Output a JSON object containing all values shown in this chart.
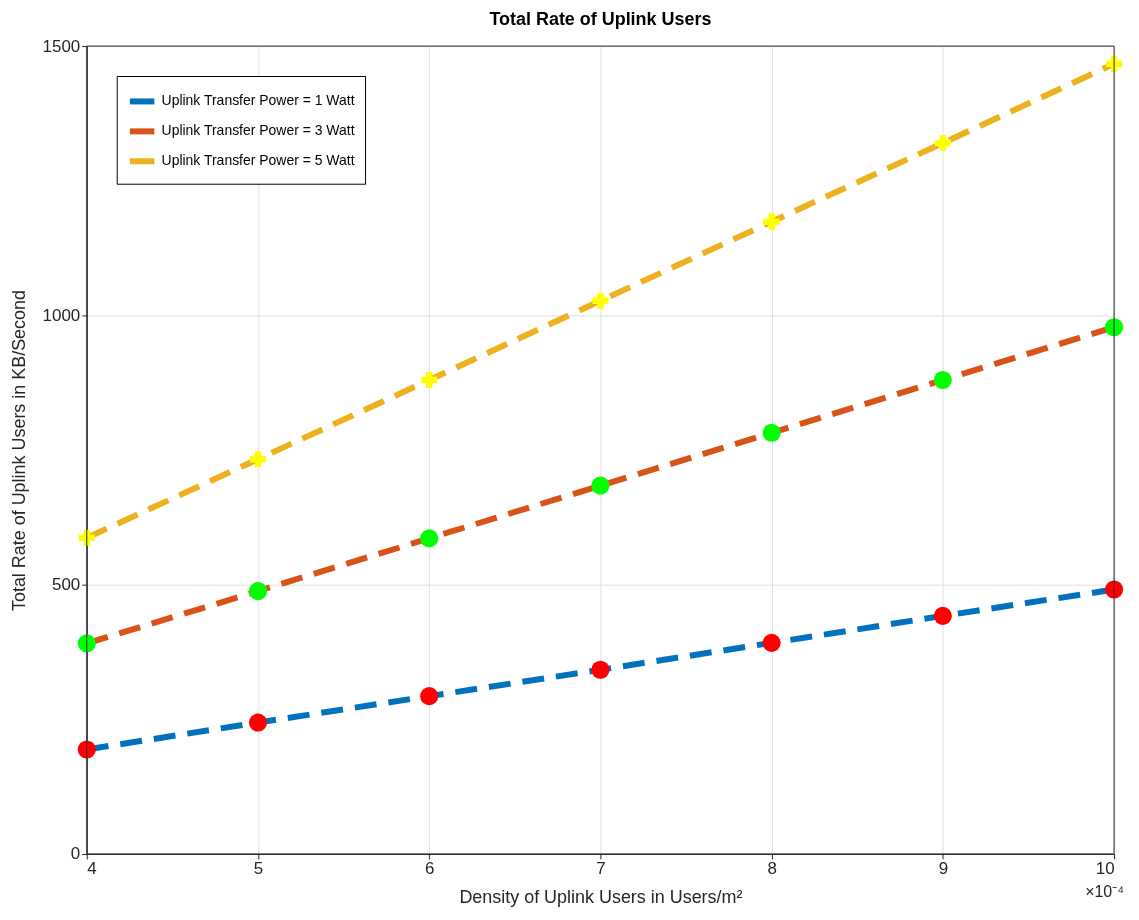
{
  "chart_data": {
    "type": "line",
    "title": "Total Rate of Uplink Users",
    "xlabel": "Density of Uplink Users in Users/m²",
    "ylabel": "Total Rate of Uplink Users in KB/Second",
    "x": [
      4,
      5,
      6,
      7,
      8,
      9,
      10
    ],
    "series": [
      {
        "name": "Uplink Transfer Power = 1 Watt",
        "color": "#0072bd",
        "marker": "circle",
        "colors": [
          "#ff0000",
          "#ff0000",
          "#ff0000",
          "#ff0000",
          "#ff0000",
          "#ff0000",
          "#ff0000"
        ],
        "values": [
          194,
          244,
          293,
          342,
          392,
          442,
          491
        ]
      },
      {
        "name": "Uplink Transfer Power = 3 Watt",
        "color": "#d95319",
        "marker": "circle",
        "colors": [
          "#00ff00",
          "#00ff00",
          "#00ff00",
          "#00ff00",
          "#00ff00",
          "#00ff00",
          "#00ff00"
        ],
        "values": [
          391,
          488,
          586,
          684,
          782,
          880,
          978
        ]
      },
      {
        "name": "Uplink Transfer Power = 5 Watt",
        "color": "#edb120",
        "marker": "cross",
        "colors": [
          "#ffff00",
          "#ffff00",
          "#ffff00",
          "#ffff00",
          "#ffff00",
          "#ffff00",
          "#ffff00"
        ],
        "values": [
          587,
          733,
          880,
          1027,
          1174,
          1320,
          1467
        ]
      }
    ],
    "xlim": [
      4,
      10
    ],
    "xticks": [
      4,
      5,
      6,
      7,
      8,
      9,
      10
    ],
    "ylim": [
      0,
      1500
    ],
    "yticks": [
      0,
      500,
      1000,
      1500
    ],
    "annotations": [
      "×10⁻⁴"
    ],
    "grid": true,
    "legend": "top left",
    "line_style": "dashed"
  }
}
